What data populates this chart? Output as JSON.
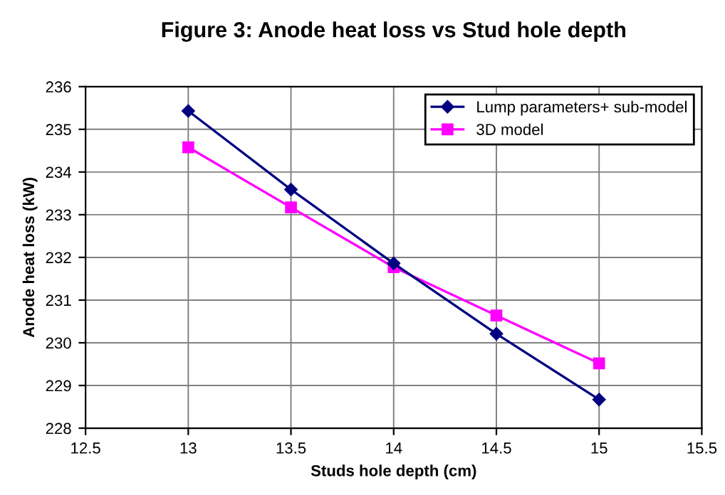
{
  "chart_data": {
    "type": "line",
    "title": "Figure 3: Anode heat loss vs Stud hole depth",
    "xlabel": "Studs hole depth (cm)",
    "ylabel": "Anode heat loss (kW)",
    "x": [
      13,
      13.5,
      14,
      14.5,
      15
    ],
    "series": [
      {
        "name": "Lump parameters+ sub-model",
        "color": "#000080",
        "marker": "diamond",
        "values": [
          235.43,
          233.59,
          231.86,
          230.21,
          228.67
        ]
      },
      {
        "name": "3D model",
        "color": "#ff00ff",
        "marker": "square",
        "values": [
          234.58,
          233.17,
          231.77,
          230.64,
          229.52
        ]
      }
    ],
    "xlim": [
      12.5,
      15.5
    ],
    "xticks": [
      12.5,
      13,
      13.5,
      14,
      14.5,
      15,
      15.5
    ],
    "ylim": [
      228,
      236
    ],
    "yticks": [
      228,
      229,
      230,
      231,
      232,
      233,
      234,
      235,
      236
    ],
    "grid": true,
    "legend": "top right"
  }
}
